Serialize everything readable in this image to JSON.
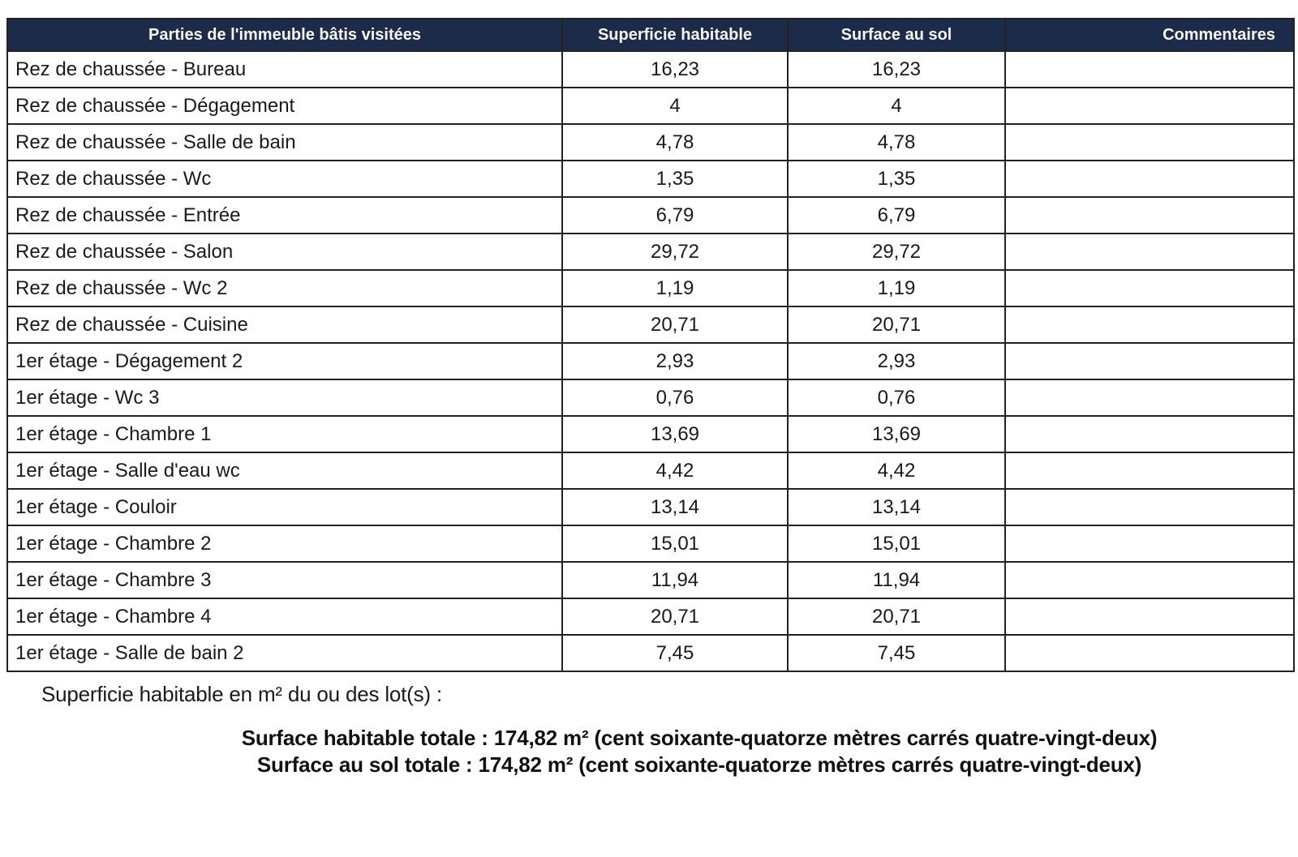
{
  "table": {
    "headers": {
      "parts": "Parties de l'immeuble bâtis visitées",
      "superficie": "Superficie habitable",
      "surface_sol": "Surface au sol",
      "commentaires": "Commentaires"
    },
    "rows": [
      {
        "label": "Rez de chaussée - Bureau",
        "superficie": "16,23",
        "surface_sol": "16,23",
        "commentaire": ""
      },
      {
        "label": "Rez de chaussée - Dégagement",
        "superficie": "4",
        "surface_sol": "4",
        "commentaire": ""
      },
      {
        "label": "Rez de chaussée - Salle de bain",
        "superficie": "4,78",
        "surface_sol": "4,78",
        "commentaire": ""
      },
      {
        "label": "Rez de chaussée - Wc",
        "superficie": "1,35",
        "surface_sol": "1,35",
        "commentaire": ""
      },
      {
        "label": "Rez de chaussée - Entrée",
        "superficie": "6,79",
        "surface_sol": "6,79",
        "commentaire": ""
      },
      {
        "label": "Rez de chaussée - Salon",
        "superficie": "29,72",
        "surface_sol": "29,72",
        "commentaire": ""
      },
      {
        "label": "Rez de chaussée - Wc 2",
        "superficie": "1,19",
        "surface_sol": "1,19",
        "commentaire": ""
      },
      {
        "label": "Rez de chaussée - Cuisine",
        "superficie": "20,71",
        "surface_sol": "20,71",
        "commentaire": ""
      },
      {
        "label": "1er étage - Dégagement 2",
        "superficie": "2,93",
        "surface_sol": "2,93",
        "commentaire": ""
      },
      {
        "label": "1er étage - Wc 3",
        "superficie": "0,76",
        "surface_sol": "0,76",
        "commentaire": ""
      },
      {
        "label": "1er étage - Chambre 1",
        "superficie": "13,69",
        "surface_sol": "13,69",
        "commentaire": ""
      },
      {
        "label": "1er étage - Salle d'eau wc",
        "superficie": "4,42",
        "surface_sol": "4,42",
        "commentaire": ""
      },
      {
        "label": "1er étage - Couloir",
        "superficie": "13,14",
        "surface_sol": "13,14",
        "commentaire": ""
      },
      {
        "label": "1er étage - Chambre 2",
        "superficie": "15,01",
        "surface_sol": "15,01",
        "commentaire": ""
      },
      {
        "label": "1er étage - Chambre 3",
        "superficie": "11,94",
        "surface_sol": "11,94",
        "commentaire": ""
      },
      {
        "label": "1er étage - Chambre 4",
        "superficie": "20,71",
        "surface_sol": "20,71",
        "commentaire": ""
      },
      {
        "label": "1er étage - Salle de bain 2",
        "superficie": "7,45",
        "surface_sol": "7,45",
        "commentaire": ""
      }
    ]
  },
  "footer": {
    "caption": "Superficie habitable en m² du ou des lot(s) :",
    "total_habitable": "Surface habitable totale : 174,82 m² (cent soixante-quatorze mètres carrés quatre-vingt-deux)",
    "total_surface_sol": "Surface au sol totale : 174,82 m² (cent soixante-quatorze mètres carrés quatre-vingt-deux)"
  },
  "colors": {
    "header_bg": "#1c2b4a",
    "header_text": "#f7f6f2",
    "border": "#222222",
    "text": "#1a1a1a",
    "background": "#ffffff"
  }
}
